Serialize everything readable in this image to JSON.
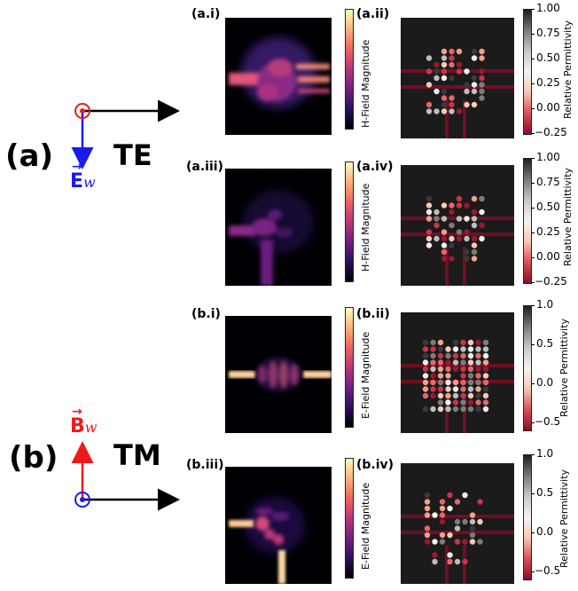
{
  "groups": [
    {
      "label": "(a)",
      "mode": "TE",
      "vector_letter": "E",
      "vector_sub": "w",
      "vector_color": "#1a1aee"
    },
    {
      "label": "(b)",
      "mode": "TM",
      "vector_letter": "B",
      "vector_sub": "w",
      "vector_color": "#ee1a1a"
    }
  ],
  "panels": {
    "a_i": "(a.i)",
    "a_ii": "(a.ii)",
    "a_iii": "(a.iii)",
    "a_iv": "(a.iv)",
    "b_i": "(b.i)",
    "b_ii": "(b.ii)",
    "b_iii": "(b.iii)",
    "b_iv": "(b.iv)"
  },
  "colorbars": {
    "h_field": "H-Field Magnitude",
    "e_field": "E-Field Magnitude",
    "permittivity": "Relative Permittivity",
    "te_ticks": [
      "1.00",
      "0.75",
      "0.50",
      "0.25",
      "0.00",
      "−0.25"
    ],
    "tm_ticks": [
      "1.0",
      "0.5",
      "0.0",
      "−0.5"
    ]
  },
  "colors": {
    "field_background": "#000004",
    "waveguide": "#6e0f24",
    "permittivity_background": "#1b1b1b"
  }
}
